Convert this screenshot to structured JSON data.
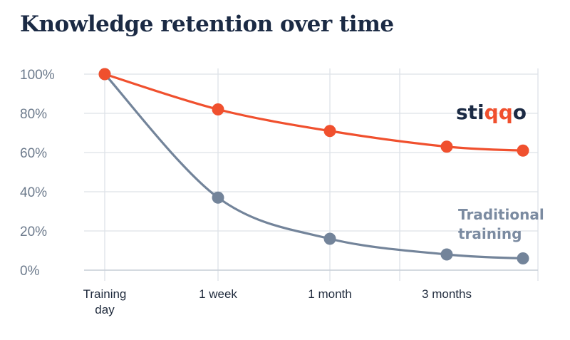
{
  "title": "Knowledge retention over time",
  "chart_data": {
    "type": "line",
    "title": "Knowledge retention over time",
    "xlabel": "",
    "ylabel": "",
    "categories": [
      "Training\nday",
      "1 week",
      "1 month",
      "3 months",
      ""
    ],
    "y_ticks": [
      "0%",
      "20%",
      "40%",
      "60%",
      "80%",
      "100%"
    ],
    "ylim": [
      0,
      100
    ],
    "grid": true,
    "series": [
      {
        "name": "stiqqo",
        "brand_parts": [
          "sti",
          "qq",
          "o"
        ],
        "color": "#f0502e",
        "values": [
          100,
          82,
          71,
          63,
          61
        ]
      },
      {
        "name": "Traditional\ntraining",
        "color": "#73849a",
        "values": [
          100,
          37,
          16,
          8,
          6
        ]
      }
    ]
  }
}
